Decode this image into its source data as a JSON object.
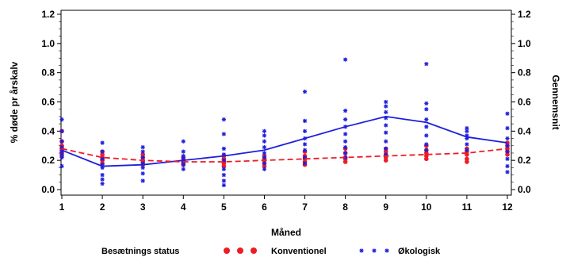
{
  "chart_data": {
    "type": "line",
    "x_ticks": [
      "1",
      "2",
      "3",
      "4",
      "5",
      "6",
      "7",
      "8",
      "9",
      "10",
      "11",
      "12"
    ],
    "xlabel": "Måned",
    "ylabel_left": "% døde pr årskalv",
    "ylabel_right": "Gennemsnit",
    "ylim": [
      0.0,
      1.2
    ],
    "y_ticks": [
      "0.0",
      "0.2",
      "0.4",
      "0.6",
      "0.8",
      "1.0",
      "1.2"
    ],
    "grid": false,
    "legend": {
      "title": "Besætnings status",
      "placement": "bottom",
      "entries": [
        "Konventionel",
        "Økologisk"
      ]
    },
    "series": [
      {
        "name": "Konventionel",
        "color": "#ee1c25",
        "line_style": "dashed",
        "marker": "dot",
        "mean": [
          0.28,
          0.22,
          0.2,
          0.19,
          0.19,
          0.2,
          0.21,
          0.22,
          0.23,
          0.24,
          0.25,
          0.28
        ],
        "points": [
          [
            1,
            0.4
          ],
          [
            1,
            0.33
          ],
          [
            1,
            0.3
          ],
          [
            1,
            0.28
          ],
          [
            1,
            0.27
          ],
          [
            1,
            0.25
          ],
          [
            1,
            0.23
          ],
          [
            2,
            0.26
          ],
          [
            2,
            0.24
          ],
          [
            2,
            0.22
          ],
          [
            2,
            0.21
          ],
          [
            2,
            0.2
          ],
          [
            2,
            0.18
          ],
          [
            3,
            0.24
          ],
          [
            3,
            0.22
          ],
          [
            3,
            0.2
          ],
          [
            3,
            0.19
          ],
          [
            3,
            0.17
          ],
          [
            4,
            0.22
          ],
          [
            4,
            0.2
          ],
          [
            4,
            0.19
          ],
          [
            4,
            0.18
          ],
          [
            4,
            0.17
          ],
          [
            5,
            0.23
          ],
          [
            5,
            0.21
          ],
          [
            5,
            0.19
          ],
          [
            5,
            0.18
          ],
          [
            5,
            0.16
          ],
          [
            6,
            0.23
          ],
          [
            6,
            0.21
          ],
          [
            6,
            0.2
          ],
          [
            6,
            0.18
          ],
          [
            6,
            0.16
          ],
          [
            7,
            0.26
          ],
          [
            7,
            0.23
          ],
          [
            7,
            0.21
          ],
          [
            7,
            0.19
          ],
          [
            7,
            0.17
          ],
          [
            8,
            0.28
          ],
          [
            8,
            0.25
          ],
          [
            8,
            0.22
          ],
          [
            8,
            0.21
          ],
          [
            8,
            0.19
          ],
          [
            9,
            0.28
          ],
          [
            9,
            0.26
          ],
          [
            9,
            0.24
          ],
          [
            9,
            0.22
          ],
          [
            9,
            0.2
          ],
          [
            10,
            0.3
          ],
          [
            10,
            0.27
          ],
          [
            10,
            0.25
          ],
          [
            10,
            0.23
          ],
          [
            10,
            0.21
          ],
          [
            11,
            0.28
          ],
          [
            11,
            0.26
          ],
          [
            11,
            0.24
          ],
          [
            11,
            0.21
          ],
          [
            11,
            0.19
          ],
          [
            12,
            0.32
          ],
          [
            12,
            0.3
          ],
          [
            12,
            0.28
          ],
          [
            12,
            0.26
          ],
          [
            12,
            0.24
          ]
        ]
      },
      {
        "name": "Økologisk",
        "color": "#1f1fdd",
        "line_style": "solid",
        "marker": "star",
        "mean": [
          0.27,
          0.16,
          0.17,
          0.2,
          0.23,
          0.27,
          0.35,
          0.43,
          0.5,
          0.46,
          0.36,
          0.32
        ],
        "points": [
          [
            1,
            0.48
          ],
          [
            1,
            0.4
          ],
          [
            1,
            0.33
          ],
          [
            1,
            0.29
          ],
          [
            1,
            0.26
          ],
          [
            1,
            0.24
          ],
          [
            1,
            0.22
          ],
          [
            1,
            0.16
          ],
          [
            2,
            0.32
          ],
          [
            2,
            0.26
          ],
          [
            2,
            0.21
          ],
          [
            2,
            0.17
          ],
          [
            2,
            0.15
          ],
          [
            2,
            0.1
          ],
          [
            2,
            0.07
          ],
          [
            2,
            0.04
          ],
          [
            3,
            0.29
          ],
          [
            3,
            0.26
          ],
          [
            3,
            0.22
          ],
          [
            3,
            0.18
          ],
          [
            3,
            0.15
          ],
          [
            3,
            0.11
          ],
          [
            3,
            0.06
          ],
          [
            4,
            0.33
          ],
          [
            4,
            0.26
          ],
          [
            4,
            0.23
          ],
          [
            4,
            0.21
          ],
          [
            4,
            0.19
          ],
          [
            4,
            0.17
          ],
          [
            4,
            0.14
          ],
          [
            5,
            0.48
          ],
          [
            5,
            0.38
          ],
          [
            5,
            0.28
          ],
          [
            5,
            0.24
          ],
          [
            5,
            0.2
          ],
          [
            5,
            0.14
          ],
          [
            5,
            0.1
          ],
          [
            5,
            0.06
          ],
          [
            5,
            0.03
          ],
          [
            6,
            0.4
          ],
          [
            6,
            0.37
          ],
          [
            6,
            0.33
          ],
          [
            6,
            0.29
          ],
          [
            6,
            0.25
          ],
          [
            6,
            0.22
          ],
          [
            6,
            0.18
          ],
          [
            6,
            0.14
          ],
          [
            7,
            0.67
          ],
          [
            7,
            0.47
          ],
          [
            7,
            0.4
          ],
          [
            7,
            0.35
          ],
          [
            7,
            0.31
          ],
          [
            7,
            0.27
          ],
          [
            7,
            0.22
          ],
          [
            7,
            0.18
          ],
          [
            8,
            0.89
          ],
          [
            8,
            0.54
          ],
          [
            8,
            0.48
          ],
          [
            8,
            0.43
          ],
          [
            8,
            0.38
          ],
          [
            8,
            0.33
          ],
          [
            8,
            0.29
          ],
          [
            8,
            0.25
          ],
          [
            8,
            0.22
          ],
          [
            9,
            0.6
          ],
          [
            9,
            0.57
          ],
          [
            9,
            0.53
          ],
          [
            9,
            0.49
          ],
          [
            9,
            0.44
          ],
          [
            9,
            0.39
          ],
          [
            9,
            0.33
          ],
          [
            9,
            0.28
          ],
          [
            9,
            0.24
          ],
          [
            10,
            0.86
          ],
          [
            10,
            0.59
          ],
          [
            10,
            0.55
          ],
          [
            10,
            0.48
          ],
          [
            10,
            0.43
          ],
          [
            10,
            0.37
          ],
          [
            10,
            0.31
          ],
          [
            10,
            0.27
          ],
          [
            11,
            0.42
          ],
          [
            11,
            0.4
          ],
          [
            11,
            0.37
          ],
          [
            11,
            0.35
          ],
          [
            11,
            0.31
          ],
          [
            11,
            0.27
          ],
          [
            12,
            0.52
          ],
          [
            12,
            0.42
          ],
          [
            12,
            0.35
          ],
          [
            12,
            0.3
          ],
          [
            12,
            0.26
          ],
          [
            12,
            0.21
          ],
          [
            12,
            0.16
          ],
          [
            12,
            0.12
          ]
        ]
      }
    ]
  }
}
